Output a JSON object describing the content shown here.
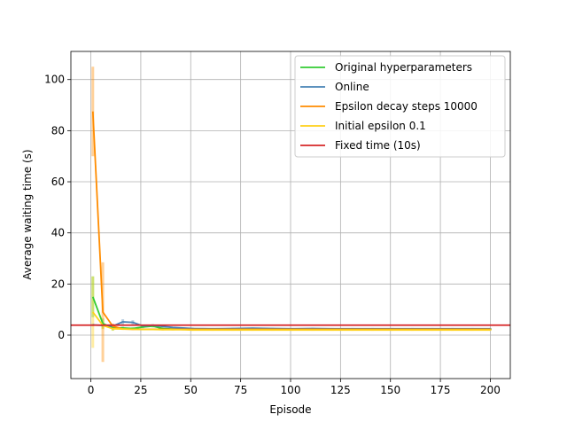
{
  "chart_data": {
    "type": "line",
    "xlabel": "Episode",
    "ylabel": "Average waiting time (s)",
    "xlim": [
      -10,
      210
    ],
    "ylim": [
      -17,
      111
    ],
    "xticks": [
      0,
      25,
      50,
      75,
      100,
      125,
      150,
      175,
      200
    ],
    "yticks": [
      0,
      20,
      40,
      60,
      80,
      100
    ],
    "xtick_labels": [
      "0",
      "25",
      "50",
      "75",
      "100",
      "125",
      "150",
      "175",
      "200"
    ],
    "ytick_labels": [
      "0",
      "20",
      "40",
      "60",
      "80",
      "100"
    ],
    "grid": true,
    "legend_position": "top-right",
    "series": [
      {
        "name": "Original hyperparameters",
        "color": "#33cc33",
        "x": [
          1,
          6,
          11,
          16,
          21,
          26,
          31,
          36,
          41,
          46,
          51,
          61,
          71,
          81,
          91,
          101,
          111,
          121,
          131,
          141,
          151,
          161,
          171,
          181,
          191,
          200
        ],
        "y": [
          15.0,
          4.5,
          2.8,
          2.8,
          2.6,
          3.2,
          3.5,
          2.6,
          2.4,
          2.5,
          2.5,
          2.4,
          2.4,
          2.4,
          2.4,
          2.4,
          2.4,
          2.4,
          2.3,
          2.3,
          2.4,
          2.3,
          2.3,
          2.3,
          2.3,
          2.3
        ],
        "err": [
          8,
          2,
          1,
          0.5,
          0.5,
          0.5,
          0.5,
          0.3,
          0.3,
          0.3,
          0.3,
          0.3,
          0.3,
          0.3,
          0.3,
          0.3,
          0.3,
          0.3,
          0.3,
          0.3,
          0.3,
          0.3,
          0.3,
          0.3,
          0.3,
          0.3
        ]
      },
      {
        "name": "Online",
        "color": "#4682b4",
        "x": [
          1,
          6,
          11,
          16,
          21,
          26,
          31,
          36,
          41,
          46,
          51,
          61,
          71,
          81,
          91,
          101,
          111,
          121,
          131,
          141,
          151,
          161,
          171,
          181,
          191,
          200
        ],
        "y": [
          4.0,
          3.8,
          3.5,
          5.2,
          5.0,
          3.6,
          3.8,
          3.4,
          3.0,
          2.8,
          2.6,
          2.5,
          2.6,
          2.7,
          2.6,
          2.5,
          2.6,
          2.5,
          2.5,
          2.5,
          2.5,
          2.5,
          2.5,
          2.5,
          2.5,
          2.5
        ],
        "err": [
          0.5,
          0.5,
          0.8,
          1.0,
          0.8,
          0.5,
          0.5,
          0.4,
          0.3,
          0.3,
          0.3,
          0.3,
          0.3,
          0.3,
          0.3,
          0.3,
          0.3,
          0.3,
          0.3,
          0.3,
          0.3,
          0.3,
          0.3,
          0.3,
          0.3,
          0.3
        ]
      },
      {
        "name": "Epsilon decay steps 10000",
        "color": "#ff8c00",
        "x": [
          1,
          6,
          11,
          16,
          21,
          26,
          31,
          36,
          41,
          46,
          51,
          61,
          71,
          81,
          91,
          101,
          111,
          121,
          131,
          141,
          151,
          161,
          171,
          181,
          191,
          200
        ],
        "y": [
          87.5,
          9.0,
          3.5,
          2.4,
          2.3,
          2.3,
          2.3,
          2.3,
          2.3,
          2.3,
          2.3,
          2.3,
          2.3,
          2.3,
          2.3,
          2.3,
          2.3,
          2.3,
          2.3,
          2.3,
          2.3,
          2.3,
          2.3,
          2.3,
          2.3,
          2.3
        ],
        "err": [
          17.5,
          19.5,
          1.0,
          0.3,
          0.3,
          0.3,
          0.3,
          0.3,
          0.3,
          0.3,
          0.3,
          0.3,
          0.3,
          0.3,
          0.3,
          0.3,
          0.3,
          0.3,
          0.3,
          0.3,
          0.3,
          0.3,
          0.3,
          0.3,
          0.3,
          0.3
        ]
      },
      {
        "name": "Initial epsilon 0.1",
        "color": "#ffd11a",
        "x": [
          1,
          6,
          11,
          16,
          21,
          26,
          31,
          36,
          41,
          46,
          51,
          61,
          71,
          81,
          91,
          101,
          111,
          121,
          131,
          141,
          151,
          161,
          171,
          181,
          191,
          200
        ],
        "y": [
          9.0,
          3.8,
          2.5,
          2.4,
          2.3,
          2.2,
          2.2,
          2.1,
          2.1,
          2.1,
          2.0,
          2.0,
          2.0,
          2.0,
          2.0,
          2.0,
          2.0,
          2.0,
          2.0,
          2.0,
          2.0,
          2.0,
          2.0,
          2.0,
          2.0,
          2.0
        ],
        "err": [
          14,
          1.5,
          0.8,
          0.4,
          0.3,
          0.3,
          0.3,
          0.3,
          0.3,
          0.3,
          0.3,
          0.3,
          0.3,
          0.3,
          0.3,
          0.3,
          0.3,
          0.3,
          0.3,
          0.3,
          0.3,
          0.3,
          0.3,
          0.3,
          0.3,
          0.3
        ]
      }
    ],
    "hlines": [
      {
        "name": "Fixed time (10s)",
        "color": "#d62728",
        "y": 3.9
      }
    ]
  }
}
